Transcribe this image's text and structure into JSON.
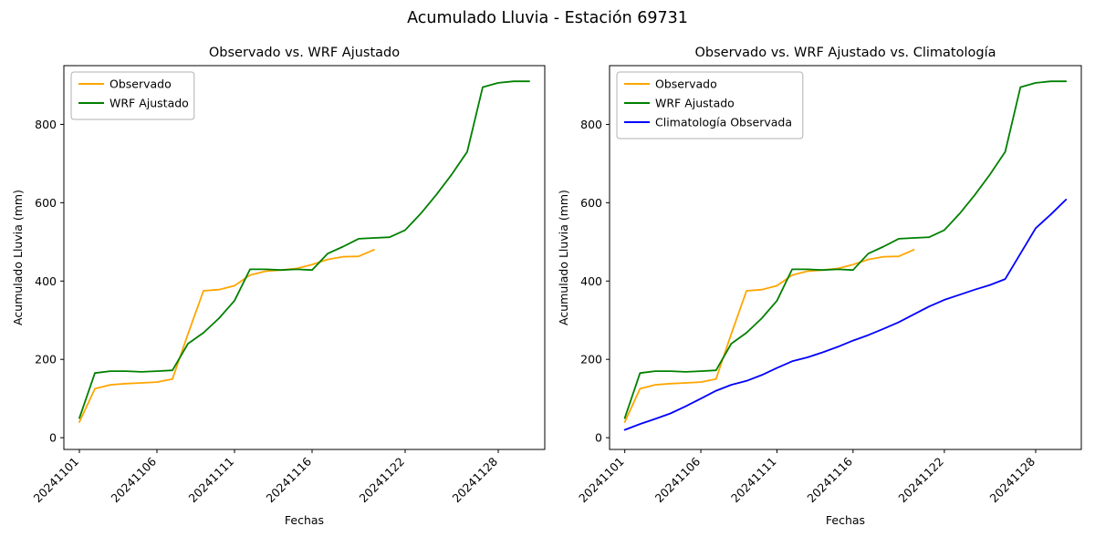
{
  "figure": {
    "title": "Acumulado Lluvia - Estación 69731",
    "background": "#ffffff"
  },
  "chart_data": [
    {
      "type": "line",
      "title": "Observado vs. WRF Ajustado",
      "xlabel": "Fechas",
      "ylabel": "Acumulado Lluvia (mm)",
      "grid": false,
      "legend_position": "upper left",
      "xlim": [
        0,
        31
      ],
      "ylim": [
        -30,
        950
      ],
      "y_ticks": [
        0,
        200,
        400,
        600,
        800
      ],
      "x_tick_days": [
        1,
        6,
        11,
        16,
        22,
        28
      ],
      "x_tick_labels": [
        "20241101",
        "20241106",
        "20241111",
        "20241116",
        "20241122",
        "20241128"
      ],
      "series": [
        {
          "name": "Observado",
          "color": "#FFA500",
          "x": [
            1,
            2,
            3,
            4,
            5,
            6,
            7,
            8,
            9,
            10,
            11,
            12,
            13,
            14,
            15,
            16,
            17,
            18,
            19,
            20
          ],
          "y": [
            40,
            125,
            135,
            138,
            140,
            142,
            150,
            265,
            375,
            378,
            388,
            415,
            425,
            428,
            432,
            442,
            455,
            462,
            463,
            480
          ]
        },
        {
          "name": "WRF Ajustado",
          "color": "#008000",
          "x": [
            1,
            2,
            3,
            4,
            5,
            6,
            7,
            8,
            9,
            10,
            11,
            12,
            13,
            14,
            15,
            16,
            17,
            18,
            19,
            20,
            21,
            22,
            23,
            24,
            25,
            26,
            27,
            28,
            29,
            30
          ],
          "y": [
            50,
            165,
            170,
            170,
            168,
            170,
            172,
            240,
            268,
            305,
            350,
            430,
            430,
            428,
            430,
            428,
            470,
            488,
            508,
            510,
            512,
            530,
            572,
            620,
            672,
            730,
            895,
            906,
            910,
            910
          ]
        }
      ]
    },
    {
      "type": "line",
      "title": "Observado vs. WRF Ajustado vs. Climatología",
      "xlabel": "Fechas",
      "ylabel": "Acumulado Lluvia (mm)",
      "grid": false,
      "legend_position": "upper left",
      "xlim": [
        0,
        31
      ],
      "ylim": [
        -30,
        950
      ],
      "y_ticks": [
        0,
        200,
        400,
        600,
        800
      ],
      "x_tick_days": [
        1,
        6,
        11,
        16,
        22,
        28
      ],
      "x_tick_labels": [
        "20241101",
        "20241106",
        "20241111",
        "20241116",
        "20241122",
        "20241128"
      ],
      "series": [
        {
          "name": "Observado",
          "color": "#FFA500",
          "x": [
            1,
            2,
            3,
            4,
            5,
            6,
            7,
            8,
            9,
            10,
            11,
            12,
            13,
            14,
            15,
            16,
            17,
            18,
            19,
            20
          ],
          "y": [
            40,
            125,
            135,
            138,
            140,
            142,
            150,
            265,
            375,
            378,
            388,
            415,
            425,
            428,
            432,
            442,
            455,
            462,
            463,
            480
          ]
        },
        {
          "name": "WRF Ajustado",
          "color": "#008000",
          "x": [
            1,
            2,
            3,
            4,
            5,
            6,
            7,
            8,
            9,
            10,
            11,
            12,
            13,
            14,
            15,
            16,
            17,
            18,
            19,
            20,
            21,
            22,
            23,
            24,
            25,
            26,
            27,
            28,
            29,
            30
          ],
          "y": [
            50,
            165,
            170,
            170,
            168,
            170,
            172,
            240,
            268,
            305,
            350,
            430,
            430,
            428,
            430,
            428,
            470,
            488,
            508,
            510,
            512,
            530,
            572,
            620,
            672,
            730,
            895,
            906,
            910,
            910
          ]
        },
        {
          "name": "Climatología Observada",
          "color": "#0000FF",
          "x": [
            1,
            2,
            3,
            4,
            5,
            6,
            7,
            8,
            9,
            10,
            11,
            12,
            13,
            14,
            15,
            16,
            17,
            18,
            19,
            20,
            21,
            22,
            23,
            24,
            25,
            26,
            27,
            28,
            29,
            30
          ],
          "y": [
            20,
            35,
            48,
            62,
            80,
            100,
            120,
            135,
            145,
            160,
            178,
            195,
            205,
            218,
            232,
            248,
            262,
            278,
            295,
            315,
            335,
            352,
            365,
            378,
            390,
            405,
            470,
            535,
            570,
            608
          ]
        }
      ]
    }
  ]
}
